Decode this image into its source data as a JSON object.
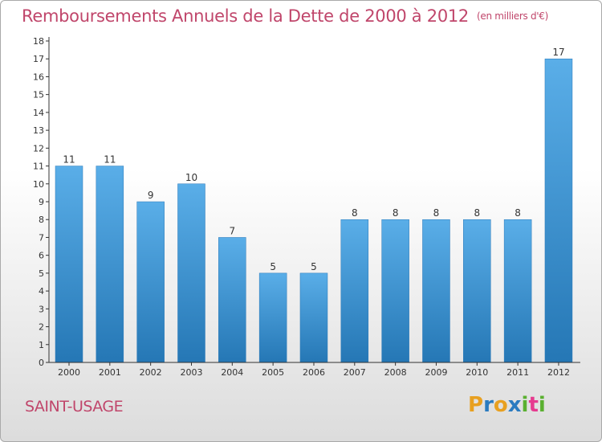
{
  "header": {
    "title": "Remboursements Annuels de la Dette de 2000 à 2012",
    "subtitle": "(en milliers d'€)"
  },
  "footer": {
    "commune": "SAINT-USAGE",
    "logo_text": "Proxiti"
  },
  "colors": {
    "title": "#c0466b",
    "bar_light": "#5aaee8",
    "bar_dark": "#2577b5",
    "axis": "#333333",
    "logo_letters": [
      "#e8a020",
      "#2a7bc0",
      "#e8a020",
      "#2a7bc0",
      "#5ab030",
      "#e63a8f",
      "#5ab030"
    ]
  },
  "chart_data": {
    "type": "bar",
    "title": "Remboursements Annuels de la Dette de 2000 à 2012",
    "categories": [
      "2000",
      "2001",
      "2002",
      "2003",
      "2004",
      "2005",
      "2006",
      "2007",
      "2008",
      "2009",
      "2010",
      "2011",
      "2012"
    ],
    "values": [
      11,
      11,
      9,
      10,
      7,
      5,
      5,
      8,
      8,
      8,
      8,
      8,
      17
    ],
    "data_labels": [
      "11",
      "11",
      "9",
      "10",
      "7",
      "5",
      "5",
      "8",
      "8",
      "8",
      "8",
      "8",
      "17"
    ],
    "xlabel": "",
    "ylabel": "",
    "ylim": [
      0,
      18
    ],
    "yticks": [
      "0",
      "1",
      "2",
      "3",
      "4",
      "5",
      "6",
      "7",
      "8",
      "9",
      "10",
      "11",
      "12",
      "13",
      "14",
      "15",
      "16",
      "17",
      "18"
    ],
    "grid": false,
    "legend": "none"
  }
}
